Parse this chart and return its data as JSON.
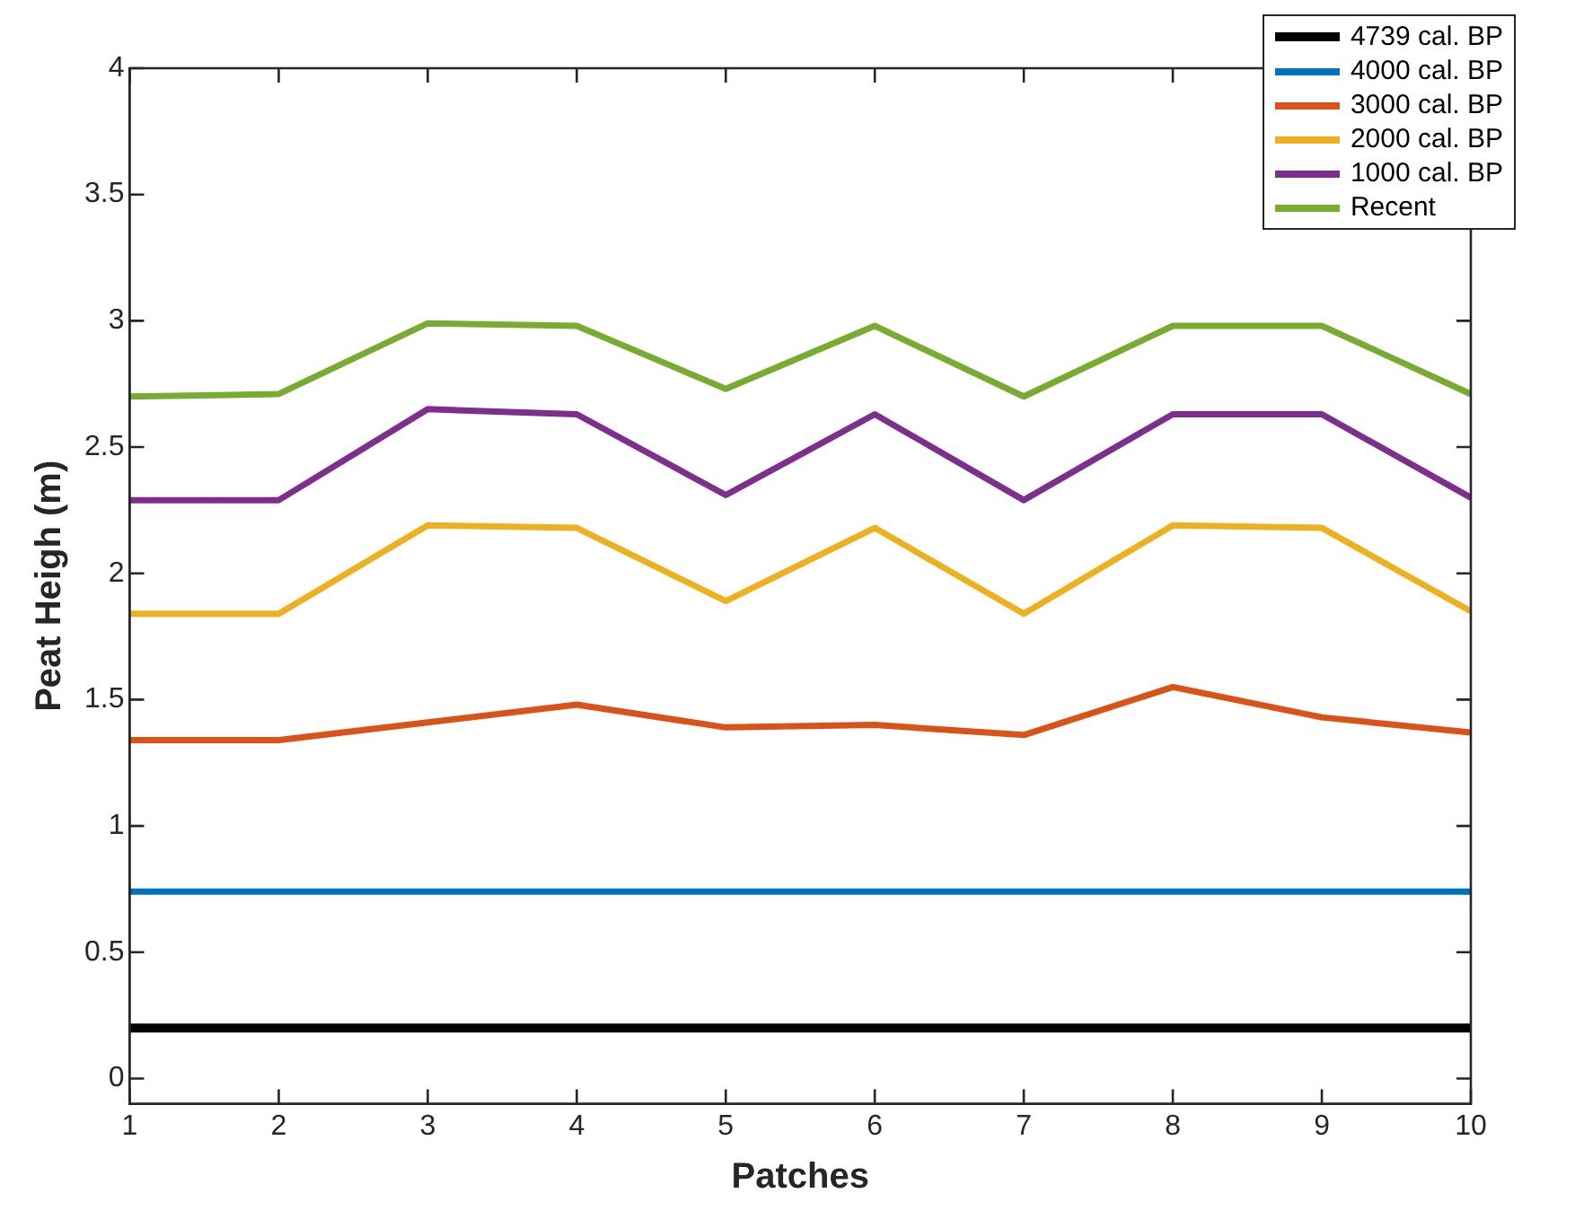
{
  "chart_data": {
    "type": "line",
    "xlabel": "Patches",
    "ylabel": "Peat Heigh (m)",
    "x": [
      1,
      2,
      3,
      4,
      5,
      6,
      7,
      8,
      9,
      10
    ],
    "xlim": [
      1,
      10
    ],
    "xticks": [
      1,
      2,
      3,
      4,
      5,
      6,
      7,
      8,
      9,
      10
    ],
    "ylim": [
      -0.1,
      4
    ],
    "yticks": [
      0,
      0.5,
      1,
      1.5,
      2,
      2.5,
      3,
      3.5,
      4
    ],
    "grid": false,
    "legend": "top right",
    "marker": "none",
    "line_style": "solid",
    "series": [
      {
        "name": "4739 cal. BP",
        "color": "#000000",
        "values": [
          0.2,
          0.2,
          0.2,
          0.2,
          0.2,
          0.2,
          0.2,
          0.2,
          0.2,
          0.2
        ]
      },
      {
        "name": "4000 cal. BP",
        "color": "#0072bd",
        "values": [
          0.74,
          0.74,
          0.74,
          0.74,
          0.74,
          0.74,
          0.74,
          0.74,
          0.74,
          0.74
        ]
      },
      {
        "name": "3000 cal. BP",
        "color": "#d95319",
        "values": [
          1.34,
          1.34,
          1.41,
          1.48,
          1.39,
          1.4,
          1.36,
          1.55,
          1.43,
          1.37
        ]
      },
      {
        "name": "2000 cal. BP",
        "color": "#edb120",
        "values": [
          1.84,
          1.84,
          2.19,
          2.18,
          1.89,
          2.18,
          1.84,
          2.19,
          2.18,
          1.85
        ]
      },
      {
        "name": "1000 cal. BP",
        "color": "#7e2f8e",
        "values": [
          2.29,
          2.29,
          2.65,
          2.63,
          2.31,
          2.63,
          2.29,
          2.63,
          2.63,
          2.3
        ]
      },
      {
        "name": "Recent",
        "color": "#77ac30",
        "values": [
          2.7,
          2.71,
          2.99,
          2.98,
          2.73,
          2.98,
          2.7,
          2.98,
          2.98,
          2.71
        ]
      }
    ]
  }
}
